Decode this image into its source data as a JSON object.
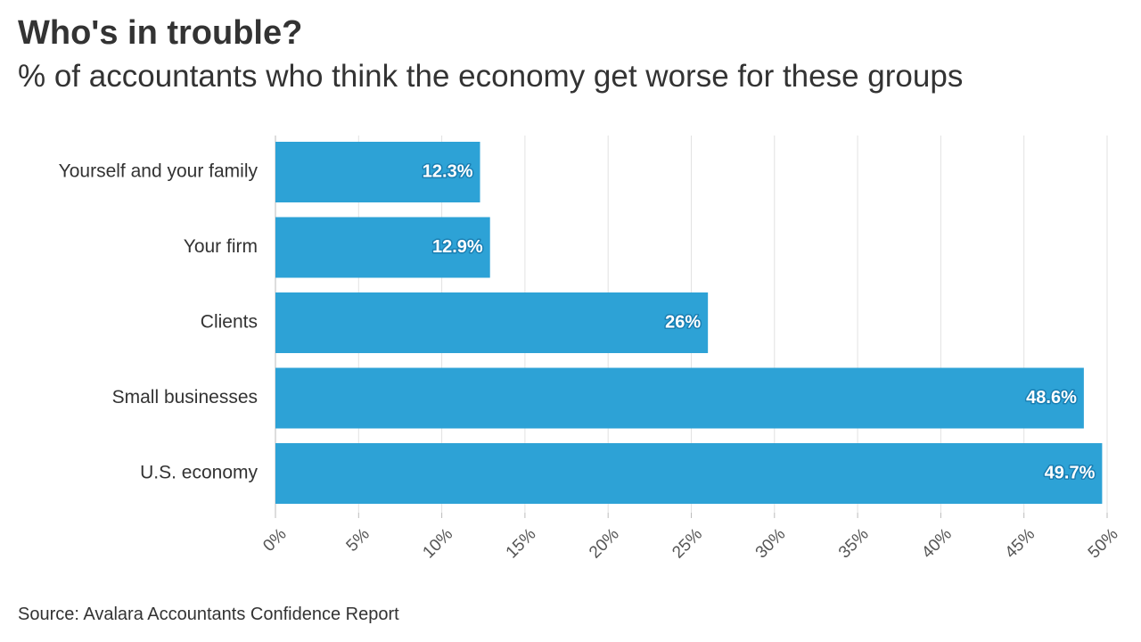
{
  "chart_data": {
    "type": "bar",
    "orientation": "horizontal",
    "title": "Who's in trouble?",
    "subtitle": "% of accountants who think the economy get worse for these groups",
    "categories": [
      "Yourself and your family",
      "Your firm",
      "Clients",
      "Small businesses",
      "U.S. economy"
    ],
    "values": [
      12.3,
      12.9,
      26,
      48.6,
      49.7
    ],
    "data_labels": [
      "12.3%",
      "12.9%",
      "26%",
      "48.6%",
      "49.7%"
    ],
    "xlim": [
      0,
      50
    ],
    "x_ticks": [
      0,
      5,
      10,
      15,
      20,
      25,
      30,
      35,
      40,
      45,
      50
    ],
    "x_tick_labels": [
      "0%",
      "5%",
      "10%",
      "15%",
      "20%",
      "25%",
      "30%",
      "35%",
      "40%",
      "45%",
      "50%"
    ],
    "grid": true,
    "bar_color": "#2da2d6",
    "source": "Source: Avalara Accountants Confidence Report"
  }
}
